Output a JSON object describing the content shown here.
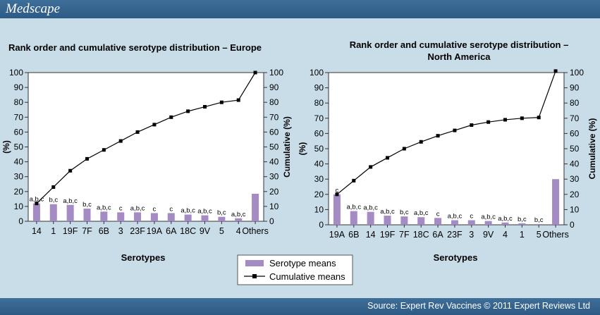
{
  "header": {
    "logo": "Medscape"
  },
  "footer": {
    "source": "Source: Expert Rev Vaccines © 2011 Expert Reviews Ltd"
  },
  "legend": {
    "bar_label": "Serotype means",
    "line_label": "Cumulative means",
    "bar_color": "#a58bc4",
    "line_color": "#000000"
  },
  "chart_data": [
    {
      "type": "bar",
      "title": "Rank order and cumulative serotype distribution – Europe",
      "xlabel": "Serotypes",
      "ylabel": "(%)",
      "y2label": "Cumulative (%)",
      "ylim": [
        0,
        100
      ],
      "yticks": [
        0,
        10,
        20,
        30,
        40,
        50,
        60,
        70,
        80,
        90,
        100
      ],
      "categories": [
        "14",
        "1",
        "19F",
        "7F",
        "6B",
        "3",
        "23F",
        "19A",
        "6A",
        "18C",
        "9V",
        "5",
        "4",
        "Others"
      ],
      "bar_labels": [
        "a,b,c",
        "b,c",
        "a,b,c",
        "b,c",
        "a,b,c",
        "c",
        "a,b,c",
        "c",
        "c",
        "a,b,c",
        "a,b,c",
        "b,c",
        "a,b,c",
        ""
      ],
      "series": [
        {
          "name": "Serotype means",
          "values": [
            12,
            11.5,
            11,
            8.5,
            6.5,
            6,
            6,
            5.5,
            5.5,
            4.5,
            4,
            3,
            2,
            18.5
          ]
        },
        {
          "name": "Cumulative means",
          "values": [
            12,
            23,
            34,
            42,
            48,
            54,
            60,
            65,
            70,
            74,
            77,
            80,
            81.5,
            100
          ]
        }
      ]
    },
    {
      "type": "bar",
      "title": "Rank order and cumulative serotype distribution – North America",
      "xlabel": "Serotypes",
      "ylabel": "(%)",
      "y2label": "Cumulative (%)",
      "ylim": [
        0,
        100
      ],
      "yticks": [
        0,
        10,
        20,
        30,
        40,
        50,
        60,
        70,
        80,
        90,
        100
      ],
      "categories": [
        "19A",
        "6B",
        "14",
        "19F",
        "7F",
        "18C",
        "6A",
        "23F",
        "3",
        "9V",
        "4",
        "1",
        "5",
        "Others"
      ],
      "bar_labels": [
        "c",
        "a,b,c",
        "a,b,c",
        "a,b,c",
        "b,c",
        "a,b,c",
        "c",
        "a,b,c",
        "c",
        "a,b,c",
        "a,b,c",
        "b,c",
        "b,c",
        ""
      ],
      "series": [
        {
          "name": "Serotype means",
          "values": [
            20,
            9,
            8.5,
            6,
            5.5,
            5,
            4.5,
            3,
            3,
            2.5,
            1.5,
            1,
            0.5,
            30
          ]
        },
        {
          "name": "Cumulative means",
          "values": [
            20,
            29,
            38,
            44,
            50,
            54.5,
            58.5,
            62,
            65.5,
            67.5,
            69,
            70,
            70.5,
            101
          ]
        }
      ]
    }
  ]
}
